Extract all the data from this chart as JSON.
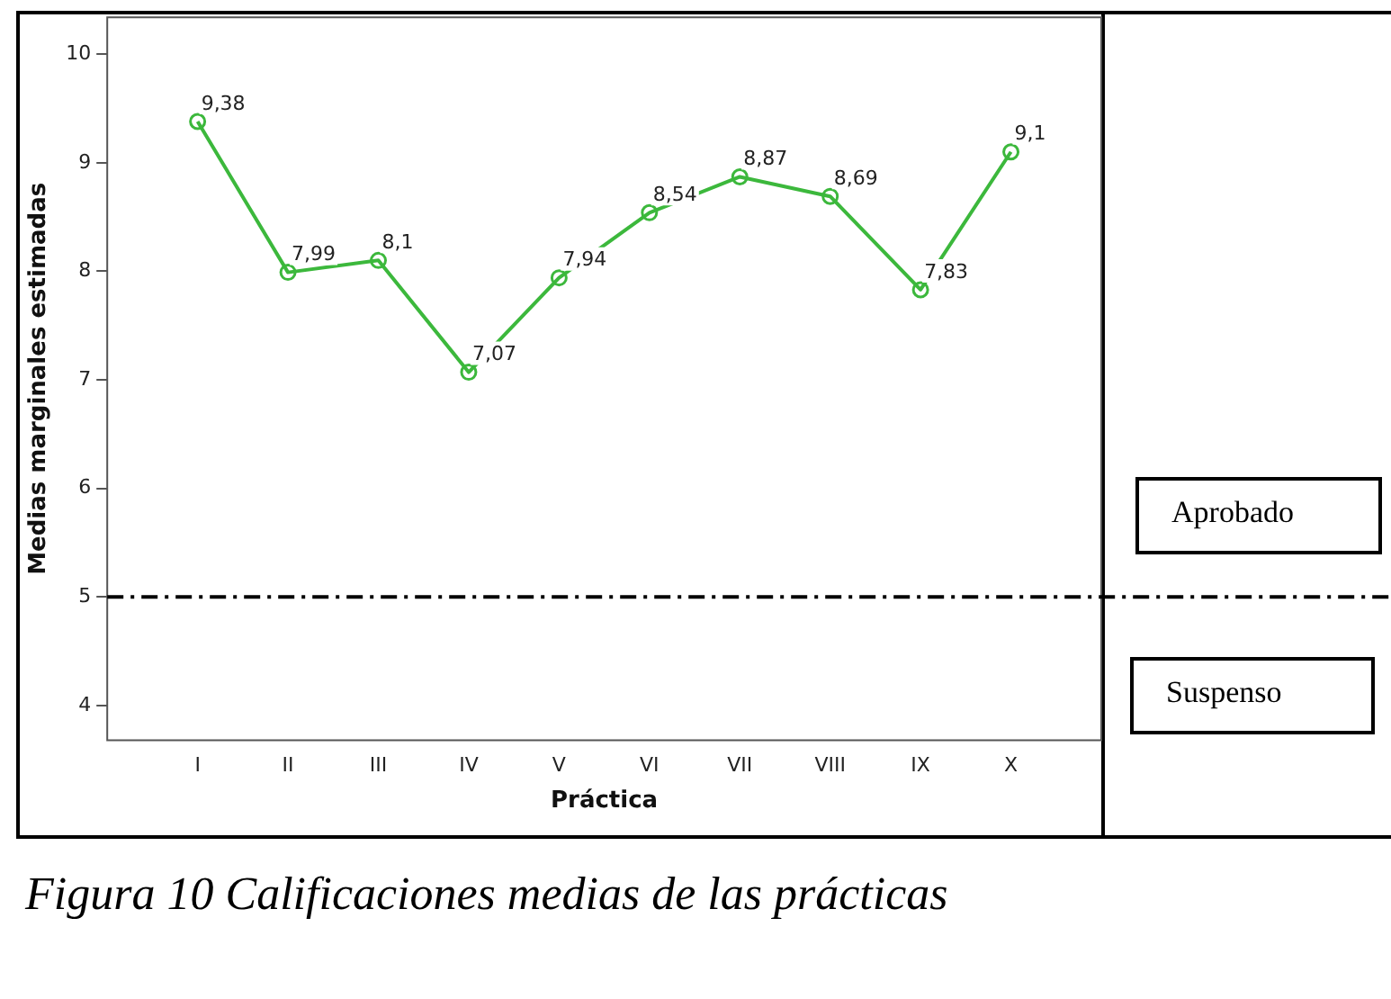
{
  "chart_data": {
    "type": "line",
    "categories": [
      "I",
      "II",
      "III",
      "IV",
      "V",
      "VI",
      "VII",
      "VIII",
      "IX",
      "X"
    ],
    "series": [
      {
        "color": "#3cb83c",
        "values": [
          9.38,
          7.99,
          8.1,
          7.07,
          7.94,
          8.54,
          8.87,
          8.69,
          7.83,
          9.1
        ],
        "value_labels": [
          "9,38",
          "7,99",
          "8,1",
          "7,07",
          "7,94",
          "8,54",
          "8,87",
          "8,69",
          "7,83",
          "9,1"
        ]
      }
    ],
    "xlabel": "Práctica",
    "ylabel": "Medias marginales estimadas",
    "ylim": [
      3.68,
      10.34
    ],
    "yticks": [
      4,
      5,
      6,
      7,
      8,
      9,
      10
    ],
    "ref_lines": [
      {
        "axis": "y",
        "value": 5,
        "color": "#000000",
        "line_style": "dashed"
      }
    ],
    "annotations": [
      "Aprobado",
      "Suspenso",
      "Figura 10 Calificaciones medias de las prácticas"
    ],
    "marker": "circle",
    "grid": false,
    "legend": false
  }
}
